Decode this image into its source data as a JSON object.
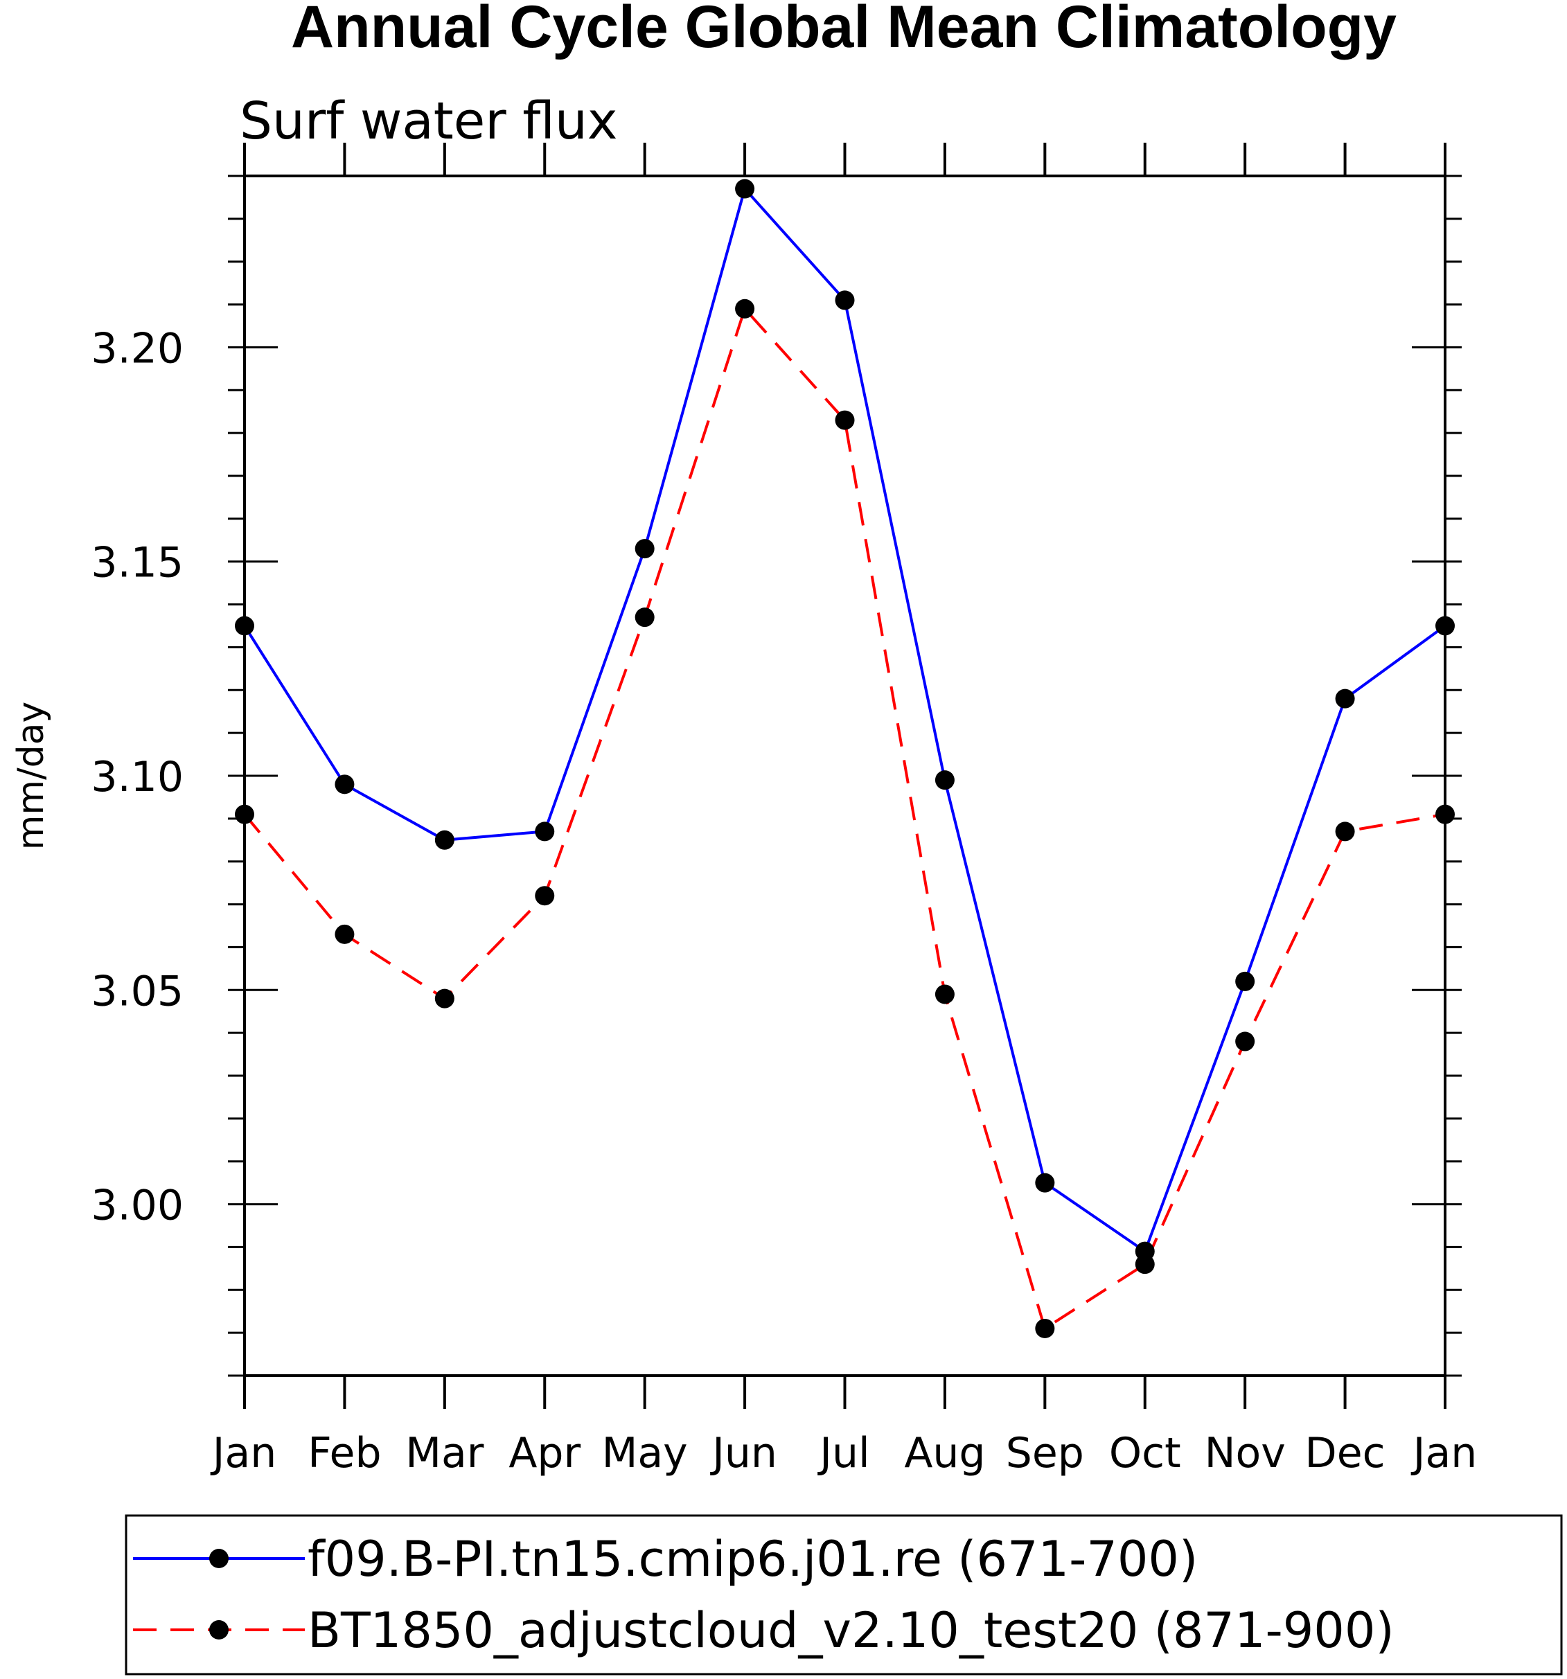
{
  "chart_data": {
    "type": "line",
    "title": "Annual Cycle Global Mean Climatology",
    "subtitle": "Surf water flux",
    "xlabel": "",
    "ylabel": "mm/day",
    "categories": [
      "Jan",
      "Feb",
      "Mar",
      "Apr",
      "May",
      "Jun",
      "Jul",
      "Aug",
      "Sep",
      "Oct",
      "Nov",
      "Dec",
      "Jan"
    ],
    "ylim": [
      2.96,
      3.24
    ],
    "yticks": [
      "3.00",
      "3.05",
      "3.10",
      "3.15",
      "3.20"
    ],
    "ytick_values": [
      3.0,
      3.05,
      3.1,
      3.15,
      3.2
    ],
    "y_minor_step": 0.01,
    "series": [
      {
        "name": "f09.B-PI.tn15.cmip6.j01.re (671-700)",
        "color": "#0000ff",
        "line_style": "solid",
        "marker": "circle",
        "values": [
          3.135,
          3.098,
          3.085,
          3.087,
          3.153,
          3.237,
          3.211,
          3.099,
          3.005,
          2.989,
          3.052,
          3.118,
          3.135
        ]
      },
      {
        "name": "BT1850_adjustcloud_v2.10_test20 (871-900)",
        "color": "#ff0000",
        "line_style": "dashed",
        "marker": "circle",
        "values": [
          3.091,
          3.063,
          3.048,
          3.072,
          3.137,
          3.209,
          3.183,
          3.049,
          2.971,
          2.986,
          3.038,
          3.087,
          3.091
        ]
      }
    ],
    "legend": {
      "placement": "bottom",
      "entries": [
        "f09.B-PI.tn15.cmip6.j01.re (671-700)",
        "BT1850_adjustcloud_v2.10_test20 (871-900)"
      ]
    },
    "grid": false
  }
}
